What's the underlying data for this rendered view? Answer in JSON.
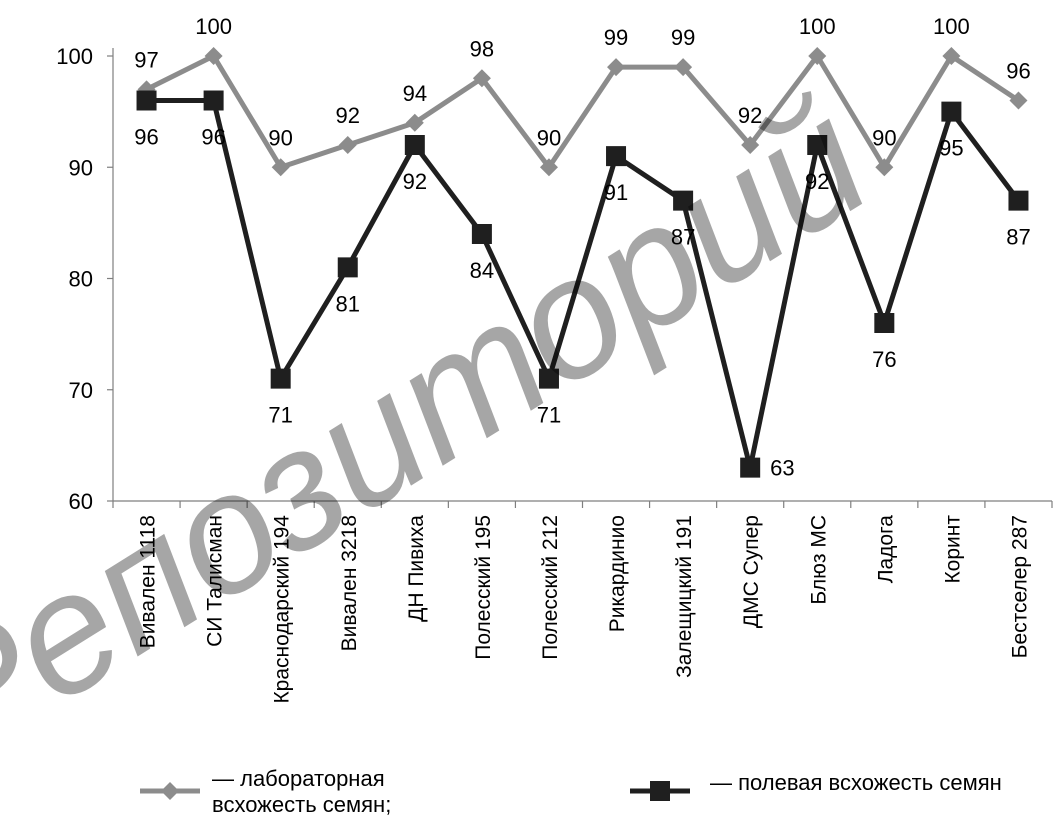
{
  "watermark_text": "Репозиторий",
  "chart_data": {
    "type": "line",
    "categories": [
      "Вивален 1118",
      "СИ Талисман",
      "Краснодарский 194",
      "Вивален 3218",
      "ДН Пивиха",
      "Полесский  195",
      "Полесский 212",
      "Рикардинио",
      "Залещицкий 191",
      "ДМС Супер",
      "Блюз МС",
      "Ладога",
      "Коринт",
      "Бестселер 287"
    ],
    "ylim": [
      60,
      100
    ],
    "yticks": [
      60,
      70,
      80,
      90,
      100
    ],
    "series": [
      {
        "name": "— лабораторная всхожесть семян;",
        "color": "#8c8c8c",
        "marker": "diamond",
        "values": [
          97,
          100,
          90,
          92,
          94,
          98,
          90,
          99,
          99,
          92,
          100,
          90,
          100,
          96
        ]
      },
      {
        "name": "— полевая всхожесть семян",
        "color": "#1f1f1f",
        "marker": "square",
        "values": [
          96,
          96,
          71,
          81,
          92,
          84,
          71,
          91,
          87,
          63,
          92,
          76,
          95,
          87
        ]
      }
    ],
    "legend_position": "bottom"
  }
}
